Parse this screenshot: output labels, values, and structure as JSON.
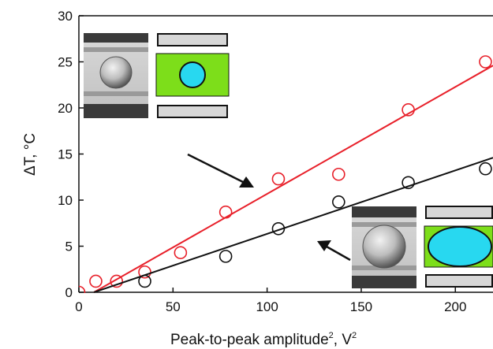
{
  "chart_data": {
    "type": "scatter",
    "xlabel": "Peak-to-peak amplitude",
    "xlabel_superscript": "2",
    "xlabel_unit": ", V",
    "xlabel_unit_superscript": "2",
    "ylabel": "ΔT, °C",
    "xlim": [
      0,
      220
    ],
    "ylim": [
      0,
      30
    ],
    "x_ticks": [
      0,
      50,
      100,
      150,
      200
    ],
    "y_ticks": [
      0,
      5,
      10,
      15,
      20,
      25,
      30
    ],
    "grid": false,
    "series": [
      {
        "color": "#e8202a",
        "marker": "open-circle",
        "points": [
          {
            "x": 0,
            "y": 0
          },
          {
            "x": 9,
            "y": 1.2
          },
          {
            "x": 20,
            "y": 1.2
          },
          {
            "x": 35,
            "y": 2.2
          },
          {
            "x": 54,
            "y": 4.3
          },
          {
            "x": 78,
            "y": 8.7
          },
          {
            "x": 106,
            "y": 12.3
          },
          {
            "x": 138,
            "y": 12.8
          },
          {
            "x": 175,
            "y": 19.8
          },
          {
            "x": 216,
            "y": 25.0
          }
        ],
        "fit": {
          "x0": 8,
          "x1": 220,
          "y1": 24.6
        }
      },
      {
        "color": "#111111",
        "marker": "open-circle",
        "points": [
          {
            "x": 35,
            "y": 1.2
          },
          {
            "x": 78,
            "y": 3.9
          },
          {
            "x": 106,
            "y": 6.9
          },
          {
            "x": 138,
            "y": 9.8
          },
          {
            "x": 175,
            "y": 11.9
          },
          {
            "x": 216,
            "y": 13.4
          }
        ],
        "fit": {
          "x0": 8,
          "x1": 220,
          "y1": 14.6
        }
      }
    ],
    "insets": [
      {
        "position": "top-left",
        "droplet_shape": "circle",
        "substrate_color": "#7dde1a",
        "droplet_color": "#28d8f0",
        "arrow_points_to": "red series"
      },
      {
        "position": "bottom-right",
        "droplet_shape": "ellipse",
        "substrate_color": "#7dde1a",
        "droplet_color": "#28d8f0",
        "arrow_points_to": "black series"
      }
    ]
  }
}
